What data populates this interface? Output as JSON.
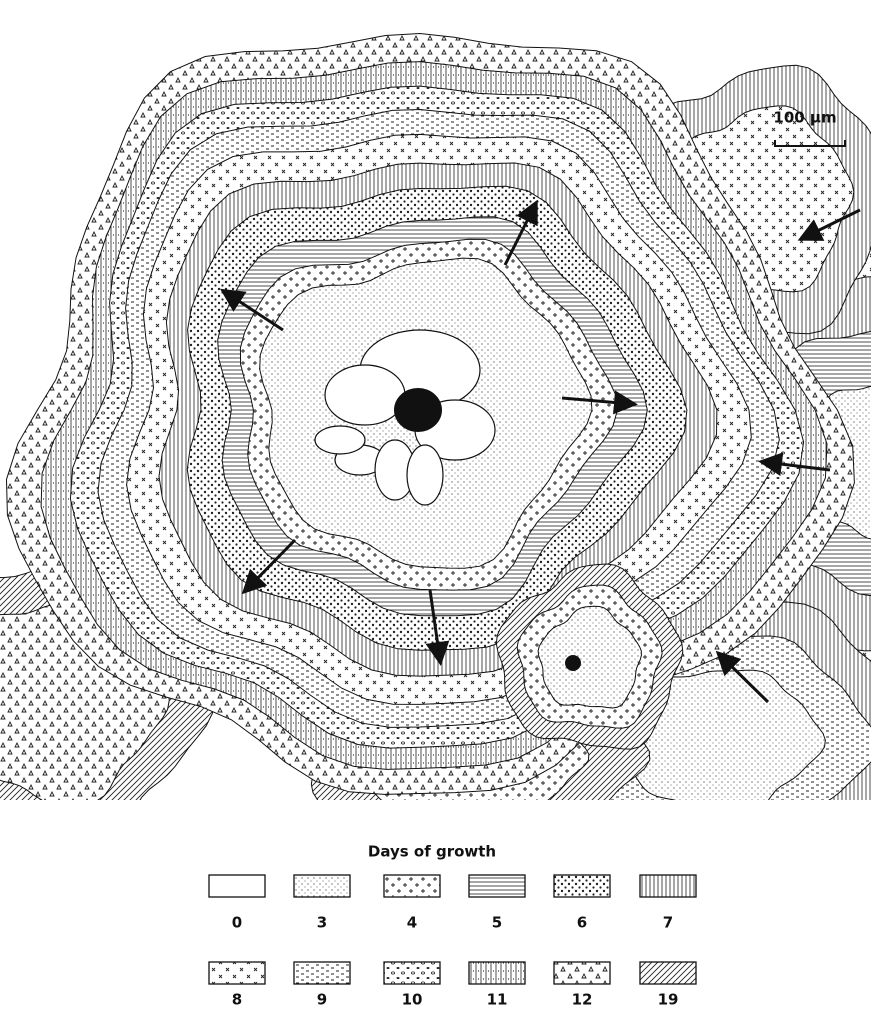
{
  "scale_bar": {
    "label": "100 µm"
  },
  "legend": {
    "title": "Days of growth",
    "items": [
      {
        "label": "0"
      },
      {
        "label": "3"
      },
      {
        "label": "4"
      },
      {
        "label": "5"
      },
      {
        "label": "6"
      },
      {
        "label": "7"
      },
      {
        "label": "8"
      },
      {
        "label": "9"
      },
      {
        "label": "10"
      },
      {
        "label": "11"
      },
      {
        "label": "12"
      },
      {
        "label": "19"
      }
    ]
  }
}
